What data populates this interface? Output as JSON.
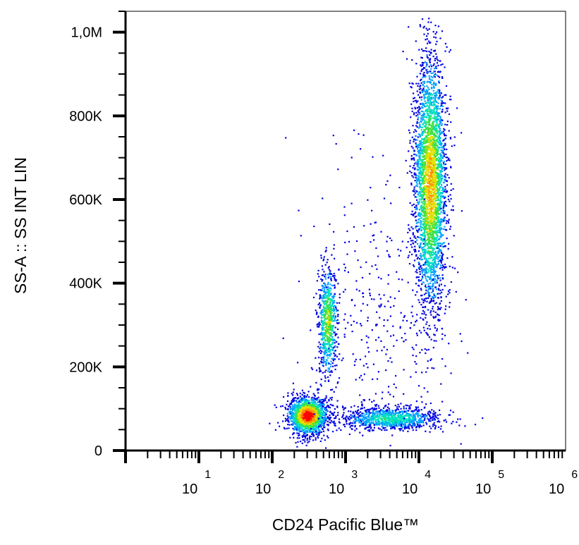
{
  "chart_data": {
    "type": "scatter",
    "subtype": "flow-cytometry-density-dot-plot",
    "xlabel": "CD24 Pacific Blue™",
    "ylabel": "SS-A :: SS INT LIN",
    "x_scale": "log",
    "y_scale": "linear",
    "xlim": [
      1,
      1000000
    ],
    "ylim": [
      0,
      1050000
    ],
    "x_ticks": [
      {
        "base": "10",
        "exp": "1",
        "value": 10
      },
      {
        "base": "10",
        "exp": "2",
        "value": 100
      },
      {
        "base": "10",
        "exp": "3",
        "value": 1000
      },
      {
        "base": "10",
        "exp": "4",
        "value": 10000
      },
      {
        "base": "10",
        "exp": "5",
        "value": 100000
      },
      {
        "base": "10",
        "exp": "6",
        "value": 1000000
      }
    ],
    "y_ticks": [
      {
        "label": "0",
        "value": 0
      },
      {
        "label": "200K",
        "value": 200000
      },
      {
        "label": "400K",
        "value": 400000
      },
      {
        "label": "600K",
        "value": 600000
      },
      {
        "label": "800K",
        "value": 800000
      },
      {
        "label": "1,0M",
        "value": 1000000
      }
    ],
    "grid": false,
    "density_colormap": [
      "#0000e0",
      "#00a0ff",
      "#00e0c0",
      "#40e040",
      "#e0e000",
      "#ff9000",
      "#ff0000"
    ],
    "populations": [
      {
        "x_center": 300,
        "y_center": 85000,
        "x_log_spread": 0.13,
        "y_spread": 22000,
        "count": 1700,
        "peak_density": 1.0
      },
      {
        "x_center": 560,
        "y_center": 310000,
        "x_log_spread": 0.065,
        "y_spread": 65000,
        "count": 700,
        "peak_density": 0.6
      },
      {
        "x_center": 14000,
        "y_center": 640000,
        "x_log_spread": 0.11,
        "y_spread": 150000,
        "count": 3200,
        "peak_density": 0.75
      },
      {
        "x_center": 4000,
        "y_center": 78000,
        "x_log_spread": 0.35,
        "y_spread": 14000,
        "count": 1000,
        "peak_density": 0.4
      },
      {
        "x_center": 2500,
        "y_center": 300000,
        "x_log_spread": 0.45,
        "y_spread": 180000,
        "count": 350,
        "peak_density": 0.05
      }
    ]
  }
}
